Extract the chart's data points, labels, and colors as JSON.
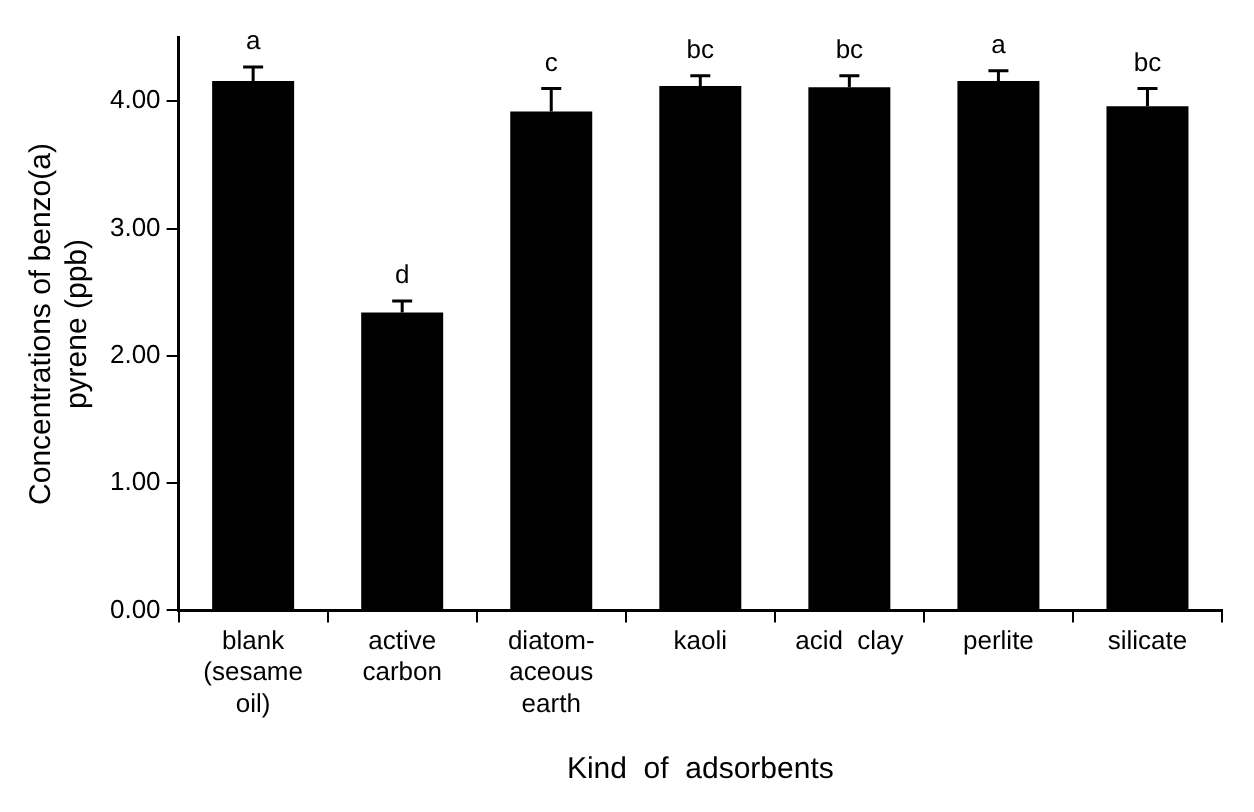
{
  "chart_data": {
    "type": "bar",
    "xlabel": "Kind  of  adsorbents",
    "ylabel": "Concentrations of benzo(a)\npyrene (ppb)",
    "categories": [
      "blank\n(sesame\noil)",
      "active\ncarbon",
      "diatom-\naceous\nearth",
      "kaoli",
      "acid  clay",
      "perlite",
      "silicate"
    ],
    "values": [
      4.16,
      2.34,
      3.92,
      4.12,
      4.11,
      4.16,
      3.96
    ],
    "errors": [
      [
        4.16,
        4.27
      ],
      [
        2.34,
        2.43
      ],
      [
        3.92,
        4.1
      ],
      [
        4.12,
        4.2
      ],
      [
        4.11,
        4.2
      ],
      [
        4.16,
        4.24
      ],
      [
        3.96,
        4.1
      ]
    ],
    "color": "#000000",
    "ylim": [
      0,
      4.5
    ],
    "yticks": [
      {
        "value": 0,
        "label": "0.00"
      },
      {
        "value": 1,
        "label": "1.00"
      },
      {
        "value": 2,
        "label": "2.00"
      },
      {
        "value": 3,
        "label": "3.00"
      },
      {
        "value": 4,
        "label": "4.00"
      }
    ],
    "annotations": [
      {
        "text": "a",
        "x": "blank\n(sesame\noil)",
        "y": 4.27
      },
      {
        "text": "d",
        "x": "active\ncarbon",
        "y": 2.43
      },
      {
        "text": "c",
        "x": "diatom-\naceous\nearth",
        "y": 4.1
      },
      {
        "text": "bc",
        "x": "kaoli",
        "y": 4.2
      },
      {
        "text": "bc",
        "x": "acid  clay",
        "y": 4.2
      },
      {
        "text": "a",
        "x": "perlite",
        "y": 4.24
      },
      {
        "text": "bc",
        "x": "silicate",
        "y": 4.1
      }
    ],
    "grid": false,
    "legend": false
  }
}
